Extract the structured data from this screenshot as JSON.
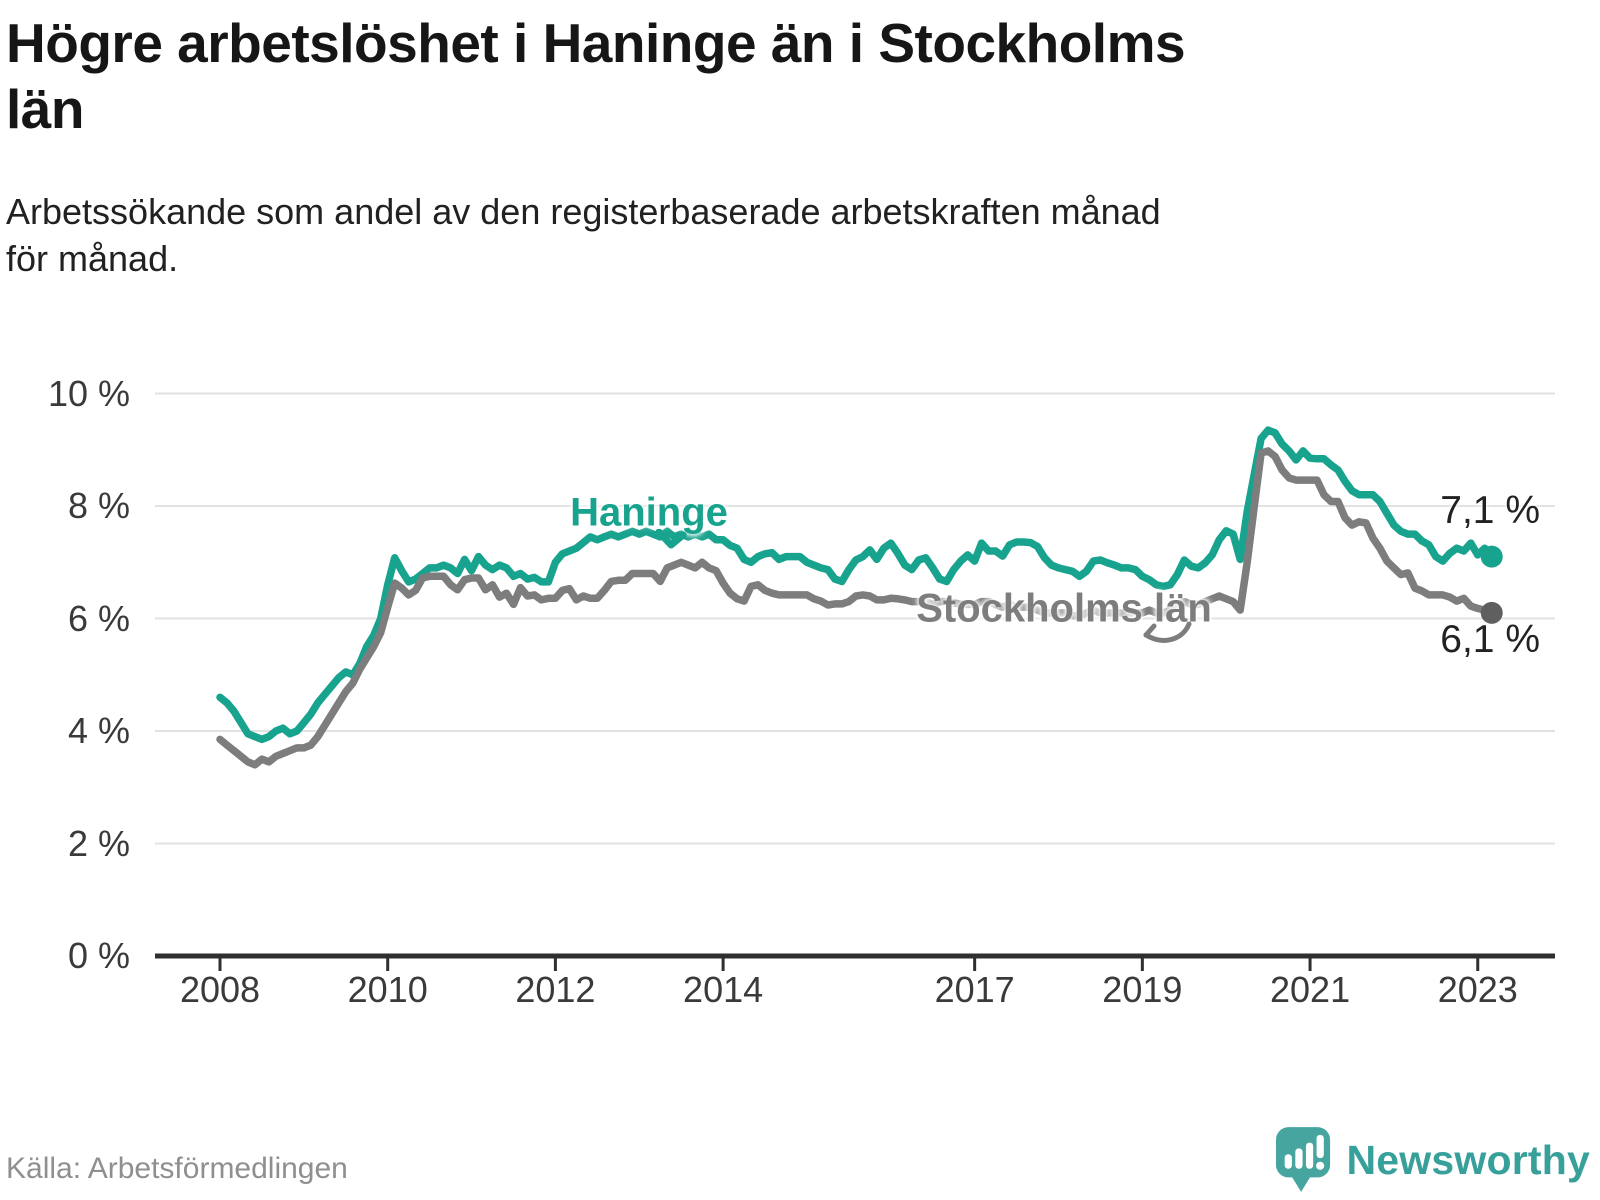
{
  "header": {
    "title": "Högre arbetslöshet i Haninge än i Stockholms län",
    "title_lines": [
      "Högre arbetslöshet i Haninge än i Stockholms",
      "län"
    ],
    "subtitle": "Arbetssökande som andel av den registerbaserade arbetskraften månad för månad.",
    "subtitle_lines": [
      "Arbetssökande som andel av den registerbaserade arbetskraften månad",
      "för månad."
    ]
  },
  "chart_data": {
    "type": "line",
    "x_start": {
      "year": 2008,
      "month": 1
    },
    "x_end": {
      "year": 2023,
      "month": 3
    },
    "x_tick_years": [
      2008,
      2010,
      2012,
      2014,
      2017,
      2019,
      2021,
      2023
    ],
    "y_ticks": [
      "10 %",
      "8 %",
      "6 %",
      "4 %",
      "2 %",
      "0 %"
    ],
    "y_tick_values": [
      10,
      8,
      6,
      4,
      2,
      0
    ],
    "ylim": [
      0,
      10.4
    ],
    "unit": "%",
    "grid": "horizontal",
    "legend_position": "inline-labels",
    "colors": {
      "haninge": "#18a38e",
      "stockholm": "#7d7d7d",
      "stockholm_dot": "#5f5f5f",
      "gridline": "#e2e2e2",
      "axis": "#2f2f2f"
    },
    "series": [
      {
        "name": "Haninge",
        "color": "#18a38e",
        "dot_color": "#18a38e",
        "end_label": "7,1 %",
        "values": [
          4.6,
          4.5,
          4.35,
          4.15,
          3.95,
          3.9,
          3.85,
          3.9,
          4.0,
          4.05,
          3.95,
          4.0,
          4.15,
          4.3,
          4.5,
          4.65,
          4.8,
          4.95,
          5.05,
          5.0,
          5.2,
          5.5,
          5.7,
          6.0,
          6.6,
          7.08,
          6.85,
          6.65,
          6.7,
          6.8,
          6.9,
          6.9,
          6.95,
          6.9,
          6.8,
          7.05,
          6.85,
          7.1,
          6.95,
          6.87,
          6.95,
          6.9,
          6.75,
          6.8,
          6.7,
          6.73,
          6.65,
          6.65,
          7.0,
          7.15,
          7.2,
          7.25,
          7.35,
          7.45,
          7.4,
          7.45,
          7.5,
          7.45,
          7.5,
          7.55,
          7.5,
          7.55,
          7.5,
          7.45,
          7.55,
          7.45,
          7.5,
          7.45,
          7.5,
          7.45,
          7.5,
          7.4,
          7.4,
          7.3,
          7.25,
          7.05,
          7.0,
          7.1,
          7.15,
          7.17,
          7.05,
          7.1,
          7.1,
          7.1,
          7.0,
          6.95,
          6.9,
          6.87,
          6.7,
          6.66,
          6.87,
          7.04,
          7.1,
          7.22,
          7.05,
          7.25,
          7.34,
          7.16,
          6.95,
          6.87,
          7.04,
          7.08,
          6.9,
          6.7,
          6.66,
          6.87,
          7.02,
          7.13,
          7.02,
          7.34,
          7.2,
          7.2,
          7.11,
          7.31,
          7.36,
          7.36,
          7.35,
          7.28,
          7.08,
          6.95,
          6.9,
          6.87,
          6.84,
          6.75,
          6.84,
          7.02,
          7.04,
          6.99,
          6.95,
          6.9,
          6.9,
          6.87,
          6.75,
          6.69,
          6.6,
          6.57,
          6.6,
          6.78,
          7.04,
          6.93,
          6.9,
          6.99,
          7.13,
          7.4,
          7.56,
          7.5,
          7.05,
          7.9,
          8.55,
          9.2,
          9.35,
          9.3,
          9.1,
          8.98,
          8.82,
          8.98,
          8.85,
          8.84,
          8.84,
          8.73,
          8.64,
          8.44,
          8.27,
          8.2,
          8.2,
          8.2,
          8.08,
          7.87,
          7.66,
          7.55,
          7.5,
          7.5,
          7.38,
          7.31,
          7.1,
          7.02,
          7.16,
          7.25,
          7.2,
          7.34,
          7.13,
          7.25,
          7.1
        ]
      },
      {
        "name": "Stockholms län",
        "color": "#7d7d7d",
        "dot_color": "#5f5f5f",
        "end_label": "6,1 %",
        "values": [
          3.85,
          3.75,
          3.65,
          3.55,
          3.45,
          3.4,
          3.5,
          3.45,
          3.55,
          3.6,
          3.65,
          3.7,
          3.7,
          3.75,
          3.9,
          4.1,
          4.3,
          4.5,
          4.7,
          4.85,
          5.1,
          5.3,
          5.5,
          5.75,
          6.2,
          6.63,
          6.54,
          6.42,
          6.5,
          6.72,
          6.75,
          6.75,
          6.75,
          6.6,
          6.51,
          6.69,
          6.72,
          6.72,
          6.51,
          6.6,
          6.38,
          6.45,
          6.25,
          6.55,
          6.4,
          6.42,
          6.33,
          6.36,
          6.36,
          6.5,
          6.53,
          6.33,
          6.4,
          6.36,
          6.36,
          6.5,
          6.66,
          6.68,
          6.68,
          6.8,
          6.8,
          6.8,
          6.8,
          6.66,
          6.9,
          6.95,
          7.0,
          6.95,
          6.9,
          7.0,
          6.9,
          6.85,
          6.63,
          6.45,
          6.35,
          6.31,
          6.57,
          6.6,
          6.5,
          6.45,
          6.42,
          6.42,
          6.42,
          6.42,
          6.42,
          6.35,
          6.31,
          6.24,
          6.26,
          6.26,
          6.3,
          6.4,
          6.42,
          6.4,
          6.33,
          6.33,
          6.36,
          6.35,
          6.33,
          6.3,
          6.3,
          6.3,
          6.25,
          6.3,
          6.3,
          6.28,
          6.25,
          6.25,
          6.25,
          6.3,
          6.3,
          6.25,
          6.2,
          6.25,
          6.2,
          6.2,
          6.2,
          6.15,
          6.1,
          6.1,
          6.1,
          6.1,
          6.05,
          6.05,
          6.1,
          6.15,
          6.1,
          6.1,
          6.1,
          6.1,
          6.1,
          6.1,
          6.1,
          6.15,
          6.1,
          6.1,
          6.15,
          6.2,
          6.3,
          6.25,
          6.25,
          6.3,
          6.35,
          6.4,
          6.35,
          6.3,
          6.15,
          7.0,
          7.97,
          8.94,
          8.98,
          8.88,
          8.64,
          8.5,
          8.46,
          8.46,
          8.46,
          8.46,
          8.2,
          8.08,
          8.08,
          7.79,
          7.66,
          7.72,
          7.7,
          7.43,
          7.25,
          7.02,
          6.9,
          6.78,
          6.81,
          6.54,
          6.49,
          6.42,
          6.42,
          6.42,
          6.38,
          6.31,
          6.36,
          6.22,
          6.18,
          6.15,
          6.1
        ]
      }
    ],
    "annotations": {
      "haninge_label": "Haninge",
      "stockholm_label": "Stockholms län",
      "haninge_end_label": "7,1 %",
      "stockholm_end_label": "6,1 %"
    }
  },
  "footer": {
    "source": "Källa: Arbetsförmedlingen",
    "brand": "Newsworthy"
  }
}
